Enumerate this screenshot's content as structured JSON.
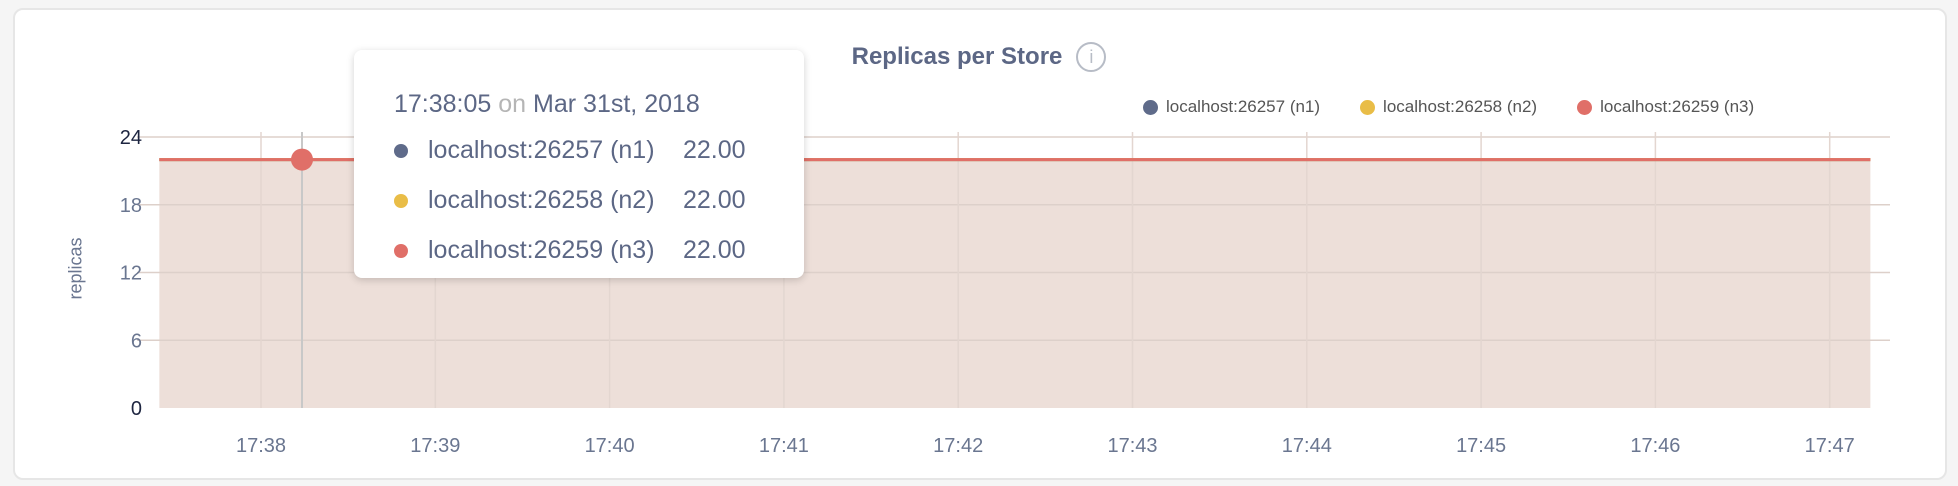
{
  "chart_data": {
    "type": "area",
    "title": "Replicas per Store",
    "ylabel": "replicas",
    "xlabel": "",
    "ylim": [
      0,
      24
    ],
    "yticks": [
      "0",
      "6",
      "12",
      "18",
      "24"
    ],
    "xlim": [
      "17:37:25",
      "17:47:14"
    ],
    "xticks": [
      "17:38",
      "17:39",
      "17:40",
      "17:41",
      "17:42",
      "17:43",
      "17:44",
      "17:45",
      "17:46",
      "17:47"
    ],
    "grid": true,
    "legend_placement": "top-right",
    "series": [
      {
        "name": "localhost:26257 (n1)",
        "color": "#5f6b8a",
        "x": [
          "17:37:25",
          "17:47:14"
        ],
        "values": [
          22,
          22
        ]
      },
      {
        "name": "localhost:26258 (n2)",
        "color": "#e9bd47",
        "x": [
          "17:37:25",
          "17:47:14"
        ],
        "values": [
          22,
          22
        ]
      },
      {
        "name": "localhost:26259 (n3)",
        "color": "#e06f68",
        "x": [
          "17:37:25",
          "17:47:14"
        ],
        "values": [
          22,
          22
        ]
      }
    ],
    "fill_color": "#eddfd9"
  },
  "tooltip": {
    "time": "17:38:05",
    "on": "on",
    "date": "Mar 31st, 2018",
    "rows": [
      {
        "name": "localhost:26257 (n1)",
        "value": "22.00"
      },
      {
        "name": "localhost:26258 (n2)",
        "value": "22.00"
      },
      {
        "name": "localhost:26259 (n3)",
        "value": "22.00"
      }
    ]
  },
  "info_icon": "info-icon"
}
